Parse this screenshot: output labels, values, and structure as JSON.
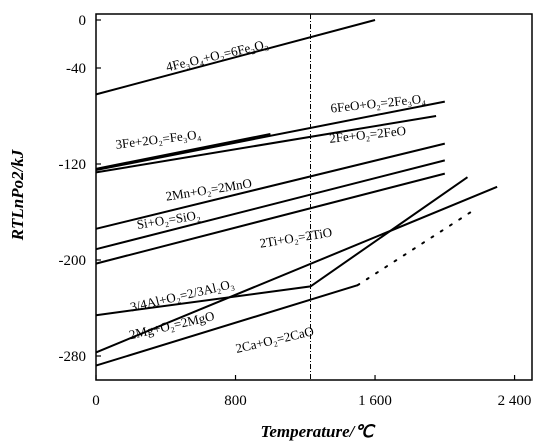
{
  "chart_data": {
    "type": "line",
    "xlabel": "Temperature/℃",
    "ylabel": "RTLnPo2/kJ",
    "xlim": [
      0,
      2500
    ],
    "ylim": [
      -300,
      5
    ],
    "x_ticks": [
      {
        "value": 0,
        "label": "0"
      },
      {
        "value": 800,
        "label": "800"
      },
      {
        "value": 1600,
        "label": "1 600"
      },
      {
        "value": 2400,
        "label": "2 400"
      }
    ],
    "y_ticks": [
      {
        "value": 0,
        "label": "0"
      },
      {
        "value": -40,
        "label": "-40"
      },
      {
        "value": -120,
        "label": "-120"
      },
      {
        "value": -200,
        "label": "-200"
      },
      {
        "value": -280,
        "label": "-280"
      }
    ],
    "reference_line": {
      "x": 1230,
      "style": "dash-dot"
    },
    "series": [
      {
        "name": "4Fe3O4+O2=6Fe2O3",
        "x": [
          0,
          1600
        ],
        "y": [
          -62,
          0
        ]
      },
      {
        "name": "6FeO+O2=2Fe3O4",
        "x": [
          0,
          2000
        ],
        "y": [
          -125,
          -68
        ]
      },
      {
        "name": "3Fe+2O2=Fe3O4",
        "x": [
          0,
          1000
        ],
        "y": [
          -124,
          -95
        ]
      },
      {
        "name": "2Fe+O2=2FeO",
        "x": [
          0,
          1950
        ],
        "y": [
          -127,
          -80
        ]
      },
      {
        "name": "2Mn+O2=2MnO",
        "x": [
          0,
          2000
        ],
        "y": [
          -174,
          -103
        ]
      },
      {
        "name": "Si+O2=SiO2",
        "x": [
          0,
          2000
        ],
        "y": [
          -191,
          -117
        ]
      },
      {
        "name": "2Ti+O2=2TiO",
        "x": [
          0,
          2000
        ],
        "y": [
          -203,
          -128
        ]
      },
      {
        "name": "3/4Al+O2=2/3Al2O3",
        "x": [
          0,
          1230,
          2130
        ],
        "y": [
          -246,
          -222,
          -131
        ]
      },
      {
        "name": "2Mg+O2=2MgO",
        "x": [
          0,
          2300
        ],
        "y": [
          -277,
          -139
        ]
      },
      {
        "name": "2Ca+O2=2CaO",
        "x": [
          0,
          1500
        ],
        "y": [
          -288,
          -221
        ],
        "extension": {
          "x": [
            1500,
            2150
          ],
          "y": [
            -221,
            -160
          ],
          "style": "dotted"
        }
      }
    ],
    "labels": [
      {
        "text": "4Fe₃O₄+O₂=6Fe₂O₃",
        "x": 700,
        "y": -33,
        "angle": -13
      },
      {
        "text": "6FeO+O₂=2Fe₃O₄",
        "x": 1620,
        "y": -73,
        "angle": -6
      },
      {
        "text": "3Fe+2O₂=Fe₃O₄",
        "x": 360,
        "y": -103,
        "angle": -7
      },
      {
        "text": "2Fe+O₂=2FeO",
        "x": 1560,
        "y": -99,
        "angle": -6
      },
      {
        "text": "2Mn+O₂=2MnO",
        "x": 650,
        "y": -145,
        "angle": -9
      },
      {
        "text": "Si+O₂=SiO₂",
        "x": 420,
        "y": -170,
        "angle": -9
      },
      {
        "text": "2Ti+O₂=2TiO",
        "x": 1150,
        "y": -185,
        "angle": -9
      },
      {
        "text": "3/4Al+O₂=2/3Al₂O₃",
        "x": 500,
        "y": -233,
        "angle": -13
      },
      {
        "text": "2Mg+O₂=2MgO",
        "x": 440,
        "y": -258,
        "angle": -13
      },
      {
        "text": "2Ca+O₂=2CaO",
        "x": 1030,
        "y": -270,
        "angle": -13
      }
    ]
  }
}
